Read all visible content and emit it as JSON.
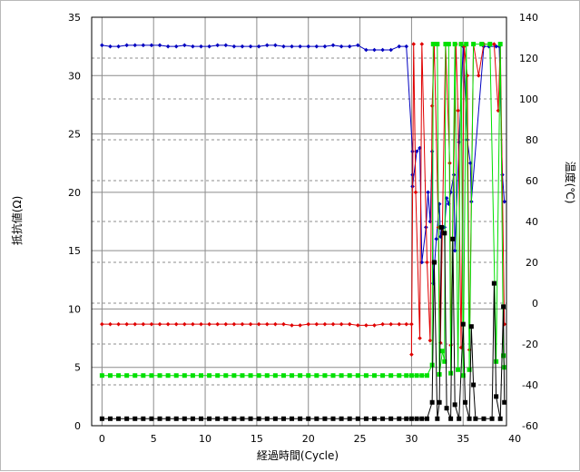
{
  "chart_data": {
    "type": "line",
    "xlabel": "経過時間(Cycle)",
    "ylabel": "抵抗値(Ω)",
    "y2label": "温度(℃)",
    "xlim": [
      -1,
      39.2
    ],
    "ylim": [
      0,
      35
    ],
    "y2lim": [
      -60,
      140
    ],
    "x_ticks": [
      0,
      5,
      10,
      15,
      20,
      25,
      30,
      35,
      40
    ],
    "y_ticks": [
      0,
      5,
      10,
      15,
      20,
      25,
      30,
      35
    ],
    "y2_ticks": [
      -60,
      -40,
      -20,
      0,
      20,
      40,
      60,
      80,
      100,
      120,
      140
    ],
    "grid": {
      "vertical": "solid",
      "horizontal": "solid",
      "secondary_horizontal": "dashed"
    },
    "series": [
      {
        "color": "#0000c0",
        "marker": "diamond",
        "axis": "left",
        "points": [
          [
            0,
            32.6
          ],
          [
            0.8,
            32.5
          ],
          [
            1.6,
            32.5
          ],
          [
            2.4,
            32.6
          ],
          [
            3.2,
            32.6
          ],
          [
            4,
            32.6
          ],
          [
            4.8,
            32.6
          ],
          [
            5.6,
            32.6
          ],
          [
            6.4,
            32.5
          ],
          [
            7.2,
            32.5
          ],
          [
            8,
            32.6
          ],
          [
            8.8,
            32.5
          ],
          [
            9.6,
            32.5
          ],
          [
            10.4,
            32.5
          ],
          [
            11.2,
            32.6
          ],
          [
            12,
            32.6
          ],
          [
            12.8,
            32.5
          ],
          [
            13.6,
            32.5
          ],
          [
            14.4,
            32.5
          ],
          [
            15.2,
            32.5
          ],
          [
            16,
            32.6
          ],
          [
            16.8,
            32.6
          ],
          [
            17.6,
            32.5
          ],
          [
            18.4,
            32.5
          ],
          [
            19.2,
            32.5
          ],
          [
            20,
            32.5
          ],
          [
            20.8,
            32.5
          ],
          [
            21.6,
            32.5
          ],
          [
            22.4,
            32.6
          ],
          [
            23.2,
            32.5
          ],
          [
            24,
            32.5
          ],
          [
            24.8,
            32.6
          ],
          [
            25.6,
            32.2
          ],
          [
            26.4,
            32.2
          ],
          [
            27.2,
            32.2
          ],
          [
            28,
            32.2
          ],
          [
            28.8,
            32.5
          ],
          [
            29.5,
            32.5
          ],
          [
            30.1,
            23.5
          ],
          [
            30.1,
            21.5
          ],
          [
            30.1,
            20.5
          ],
          [
            30.5,
            23.5
          ],
          [
            30.8,
            23.8
          ],
          [
            31,
            14
          ],
          [
            31.4,
            17
          ],
          [
            31.6,
            20
          ],
          [
            31.8,
            17.5
          ],
          [
            32,
            23.5
          ],
          [
            32.1,
            12.2
          ],
          [
            32.4,
            16
          ],
          [
            32.7,
            19
          ],
          [
            32.8,
            16.2
          ],
          [
            33,
            17
          ],
          [
            33.2,
            17
          ],
          [
            33.4,
            19.5
          ],
          [
            33.6,
            19
          ],
          [
            33.8,
            20
          ],
          [
            34.1,
            21.5
          ],
          [
            34.2,
            15
          ],
          [
            34.6,
            24.3
          ],
          [
            35,
            32.5
          ],
          [
            35.4,
            24.5
          ],
          [
            35.7,
            22.5
          ],
          [
            35.8,
            19.2
          ],
          [
            37,
            32.5
          ],
          [
            37.5,
            32.5
          ],
          [
            38.2,
            32.5
          ],
          [
            38.5,
            32.5
          ],
          [
            38.8,
            21.5
          ],
          [
            39,
            19.2
          ]
        ]
      },
      {
        "color": "#e00000",
        "marker": "diamond",
        "axis": "left",
        "points": [
          [
            0,
            8.7
          ],
          [
            0.8,
            8.7
          ],
          [
            1.6,
            8.7
          ],
          [
            2.4,
            8.7
          ],
          [
            3.2,
            8.7
          ],
          [
            4,
            8.7
          ],
          [
            4.8,
            8.7
          ],
          [
            5.6,
            8.7
          ],
          [
            6.4,
            8.7
          ],
          [
            7.2,
            8.7
          ],
          [
            8,
            8.7
          ],
          [
            8.8,
            8.7
          ],
          [
            9.6,
            8.7
          ],
          [
            10.4,
            8.7
          ],
          [
            11.2,
            8.7
          ],
          [
            12,
            8.7
          ],
          [
            12.8,
            8.7
          ],
          [
            13.6,
            8.7
          ],
          [
            14.4,
            8.7
          ],
          [
            15.2,
            8.7
          ],
          [
            16,
            8.7
          ],
          [
            16.8,
            8.7
          ],
          [
            17.6,
            8.7
          ],
          [
            18.4,
            8.6
          ],
          [
            19.2,
            8.6
          ],
          [
            20,
            8.7
          ],
          [
            20.8,
            8.7
          ],
          [
            21.6,
            8.7
          ],
          [
            22.4,
            8.7
          ],
          [
            23.2,
            8.7
          ],
          [
            24,
            8.7
          ],
          [
            24.8,
            8.6
          ],
          [
            25.6,
            8.6
          ],
          [
            26.4,
            8.6
          ],
          [
            27.2,
            8.7
          ],
          [
            28,
            8.7
          ],
          [
            28.8,
            8.7
          ],
          [
            29.5,
            8.7
          ],
          [
            30,
            8.7
          ],
          [
            30,
            6.1
          ],
          [
            30.2,
            32.7
          ],
          [
            30.4,
            20
          ],
          [
            30.8,
            7.5
          ],
          [
            31,
            32.7
          ],
          [
            31.5,
            14
          ],
          [
            31.8,
            7.3
          ],
          [
            32,
            27.4
          ],
          [
            32.2,
            32.7
          ],
          [
            32.6,
            17
          ],
          [
            32.8,
            7.1
          ],
          [
            33.3,
            32.7
          ],
          [
            33.7,
            22.5
          ],
          [
            33.8,
            6.9
          ],
          [
            34.3,
            32.7
          ],
          [
            34.5,
            27
          ],
          [
            34.8,
            6.7
          ],
          [
            35.1,
            32.5
          ],
          [
            35.4,
            30
          ],
          [
            35.6,
            6.5
          ],
          [
            36,
            32.7
          ],
          [
            36.5,
            30
          ],
          [
            37,
            32.7
          ],
          [
            37.6,
            32.7
          ],
          [
            38,
            32.7
          ],
          [
            38.4,
            27
          ],
          [
            38.6,
            32.7
          ],
          [
            39,
            8.7
          ]
        ]
      },
      {
        "color": "#00e000",
        "marker": "square",
        "axis": "left",
        "points": [
          [
            0,
            4.3
          ],
          [
            0.8,
            4.3
          ],
          [
            1.6,
            4.3
          ],
          [
            2.4,
            4.3
          ],
          [
            3.2,
            4.3
          ],
          [
            4,
            4.3
          ],
          [
            4.8,
            4.3
          ],
          [
            5.6,
            4.3
          ],
          [
            6.4,
            4.3
          ],
          [
            7.2,
            4.3
          ],
          [
            8,
            4.3
          ],
          [
            8.8,
            4.3
          ],
          [
            9.6,
            4.3
          ],
          [
            10.4,
            4.3
          ],
          [
            11.2,
            4.3
          ],
          [
            12,
            4.3
          ],
          [
            12.8,
            4.3
          ],
          [
            13.6,
            4.3
          ],
          [
            14.4,
            4.3
          ],
          [
            15.2,
            4.3
          ],
          [
            16,
            4.3
          ],
          [
            16.8,
            4.3
          ],
          [
            17.6,
            4.3
          ],
          [
            18.4,
            4.3
          ],
          [
            19.2,
            4.3
          ],
          [
            20,
            4.3
          ],
          [
            20.8,
            4.3
          ],
          [
            21.6,
            4.3
          ],
          [
            22.4,
            4.3
          ],
          [
            23.2,
            4.3
          ],
          [
            24,
            4.3
          ],
          [
            24.8,
            4.3
          ],
          [
            25.6,
            4.3
          ],
          [
            26.4,
            4.3
          ],
          [
            27.2,
            4.3
          ],
          [
            28,
            4.3
          ],
          [
            28.8,
            4.3
          ],
          [
            29.5,
            4.3
          ],
          [
            30,
            4.3
          ],
          [
            30.5,
            4.3
          ],
          [
            31,
            4.3
          ],
          [
            31.5,
            4.3
          ],
          [
            32,
            5.2
          ],
          [
            32.1,
            32.7
          ],
          [
            32.5,
            32.7
          ],
          [
            32.7,
            4.4
          ],
          [
            33,
            6.4
          ],
          [
            33.2,
            5.5
          ],
          [
            33.3,
            32.7
          ],
          [
            33.6,
            32.7
          ],
          [
            33.8,
            4.5
          ],
          [
            34.2,
            32.7
          ],
          [
            34.5,
            4.8
          ],
          [
            34.8,
            32.7
          ],
          [
            35,
            4.3
          ],
          [
            35.3,
            32.7
          ],
          [
            35.6,
            4.8
          ],
          [
            36,
            32.7
          ],
          [
            36.8,
            32.7
          ],
          [
            37.6,
            32.7
          ],
          [
            38.2,
            5.5
          ],
          [
            38.6,
            32.7
          ],
          [
            38.9,
            6
          ],
          [
            39,
            5
          ]
        ]
      },
      {
        "color": "#000000",
        "marker": "square",
        "axis": "left",
        "points": [
          [
            0,
            0.6
          ],
          [
            0.8,
            0.6
          ],
          [
            1.6,
            0.6
          ],
          [
            2.4,
            0.6
          ],
          [
            3.2,
            0.6
          ],
          [
            4,
            0.6
          ],
          [
            4.8,
            0.6
          ],
          [
            5.6,
            0.6
          ],
          [
            6.4,
            0.6
          ],
          [
            7.2,
            0.6
          ],
          [
            8,
            0.6
          ],
          [
            8.8,
            0.6
          ],
          [
            9.6,
            0.6
          ],
          [
            10.4,
            0.6
          ],
          [
            11.2,
            0.6
          ],
          [
            12,
            0.6
          ],
          [
            12.8,
            0.6
          ],
          [
            13.6,
            0.6
          ],
          [
            14.4,
            0.6
          ],
          [
            15.2,
            0.6
          ],
          [
            16,
            0.6
          ],
          [
            16.8,
            0.6
          ],
          [
            17.6,
            0.6
          ],
          [
            18.4,
            0.6
          ],
          [
            19.2,
            0.6
          ],
          [
            20,
            0.6
          ],
          [
            20.8,
            0.6
          ],
          [
            21.6,
            0.6
          ],
          [
            22.4,
            0.6
          ],
          [
            23.2,
            0.6
          ],
          [
            24,
            0.6
          ],
          [
            24.8,
            0.6
          ],
          [
            25.6,
            0.6
          ],
          [
            26.4,
            0.6
          ],
          [
            27.2,
            0.6
          ],
          [
            28,
            0.6
          ],
          [
            28.8,
            0.6
          ],
          [
            29.5,
            0.6
          ],
          [
            30,
            0.6
          ],
          [
            30.5,
            0.6
          ],
          [
            31,
            0.6
          ],
          [
            31.5,
            0.6
          ],
          [
            32,
            2
          ],
          [
            32.2,
            14
          ],
          [
            32.5,
            0.6
          ],
          [
            32.7,
            2
          ],
          [
            32.9,
            17
          ],
          [
            33.2,
            16.5
          ],
          [
            33.4,
            1.5
          ],
          [
            33.8,
            0.6
          ],
          [
            34,
            16
          ],
          [
            34.2,
            1.8
          ],
          [
            34.6,
            0.6
          ],
          [
            35,
            8.7
          ],
          [
            35.2,
            2
          ],
          [
            35.6,
            0.6
          ],
          [
            35.8,
            8.5
          ],
          [
            36,
            3.5
          ],
          [
            36.2,
            0.6
          ],
          [
            37,
            0.6
          ],
          [
            37.8,
            0.6
          ],
          [
            38,
            12.2
          ],
          [
            38.2,
            2.5
          ],
          [
            38.6,
            0.6
          ],
          [
            38.9,
            10.2
          ],
          [
            39,
            2
          ]
        ]
      }
    ]
  }
}
